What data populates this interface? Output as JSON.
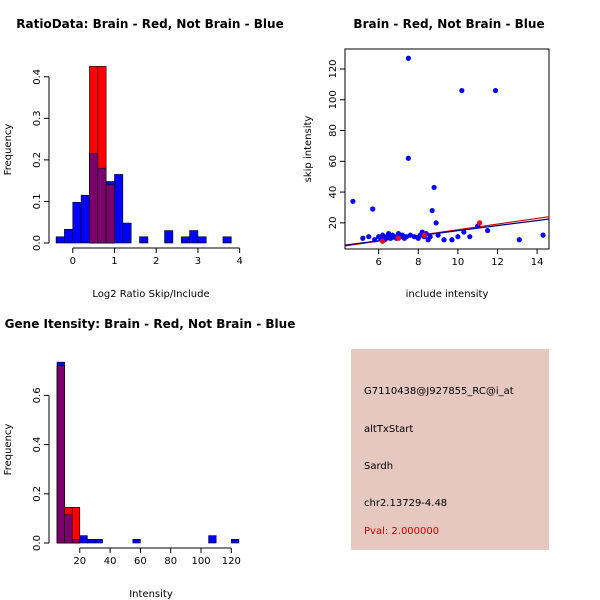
{
  "colors": {
    "red": "#ff0000",
    "blue": "#0000ff",
    "overlap": "#7b006b",
    "fit_red": "#cc0000",
    "fit_blue": "#000080",
    "panel_bg": "#e6c8c0",
    "pval": "#cc0000"
  },
  "chart_data": [
    {
      "id": "ratio",
      "type": "bar",
      "title": "RatioData: Brain - Red, Not Brain - Blue",
      "xlabel": "Log2 Ratio Skip/Include",
      "ylabel": "Frequency",
      "xlim": [
        -0.45,
        4.2
      ],
      "ylim": [
        0,
        0.45
      ],
      "xticks": [
        0,
        1,
        2,
        3,
        4
      ],
      "yticks": [
        0.0,
        0.1,
        0.2,
        0.3,
        0.4
      ],
      "bin_width": 0.2,
      "series": [
        {
          "name": "Not Brain",
          "color": "blue",
          "bins": [
            [
              -0.4,
              0.015
            ],
            [
              -0.2,
              0.033
            ],
            [
              0.0,
              0.098
            ],
            [
              0.2,
              0.115
            ],
            [
              0.4,
              0.215
            ],
            [
              0.6,
              0.18
            ],
            [
              0.8,
              0.148
            ],
            [
              1.0,
              0.165
            ],
            [
              1.2,
              0.048
            ],
            [
              1.6,
              0.015
            ],
            [
              2.2,
              0.03
            ],
            [
              2.6,
              0.015
            ],
            [
              2.8,
              0.03
            ],
            [
              3.0,
              0.015
            ],
            [
              3.6,
              0.015
            ]
          ]
        },
        {
          "name": "Brain",
          "color": "red",
          "bins": [
            [
              0.4,
              0.425
            ],
            [
              0.6,
              0.425
            ],
            [
              0.8,
              0.14
            ]
          ]
        }
      ]
    },
    {
      "id": "scatter",
      "type": "scatter",
      "title": "Brain - Red, Not Brain - Blue",
      "xlabel": "include intensity",
      "ylabel": "skip intensity",
      "xlim": [
        4.3,
        14.6
      ],
      "ylim": [
        3,
        133
      ],
      "xticks": [
        6,
        8,
        10,
        12,
        14
      ],
      "yticks": [
        20,
        40,
        60,
        80,
        100,
        120
      ],
      "series": [
        {
          "name": "Not Brain",
          "color": "blue",
          "points": [
            [
              4.7,
              34
            ],
            [
              5.2,
              10
            ],
            [
              5.5,
              11
            ],
            [
              5.7,
              29
            ],
            [
              5.8,
              9
            ],
            [
              6.0,
              11
            ],
            [
              6.1,
              10
            ],
            [
              6.2,
              12
            ],
            [
              6.3,
              9
            ],
            [
              6.4,
              11
            ],
            [
              6.5,
              13
            ],
            [
              6.6,
              10
            ],
            [
              6.7,
              12
            ],
            [
              6.8,
              11
            ],
            [
              6.9,
              10
            ],
            [
              7.0,
              13
            ],
            [
              7.1,
              11
            ],
            [
              7.2,
              12
            ],
            [
              7.3,
              10
            ],
            [
              7.4,
              11
            ],
            [
              7.5,
              127
            ],
            [
              7.5,
              62
            ],
            [
              7.6,
              12
            ],
            [
              7.8,
              11
            ],
            [
              8.0,
              10
            ],
            [
              8.1,
              12
            ],
            [
              8.2,
              14
            ],
            [
              8.3,
              11
            ],
            [
              8.4,
              13
            ],
            [
              8.5,
              9
            ],
            [
              8.6,
              11
            ],
            [
              8.7,
              28
            ],
            [
              8.8,
              43
            ],
            [
              8.9,
              20
            ],
            [
              9.0,
              12
            ],
            [
              9.3,
              9
            ],
            [
              9.7,
              9
            ],
            [
              10.0,
              11
            ],
            [
              10.2,
              106
            ],
            [
              10.3,
              14
            ],
            [
              10.6,
              11
            ],
            [
              11.0,
              18
            ],
            [
              11.5,
              15
            ],
            [
              11.9,
              106
            ],
            [
              13.1,
              9
            ],
            [
              14.3,
              12
            ]
          ]
        },
        {
          "name": "Brain",
          "color": "red",
          "points": [
            [
              6.2,
              8
            ],
            [
              7.0,
              10
            ],
            [
              8.3,
              12
            ],
            [
              11.1,
              20
            ]
          ]
        }
      ],
      "fits": [
        {
          "name": "Brain fit",
          "color": "fit_red",
          "from": [
            4.3,
            5.0
          ],
          "to": [
            14.6,
            24.0
          ]
        },
        {
          "name": "Not Brain fit",
          "color": "fit_blue",
          "from": [
            4.3,
            5.5
          ],
          "to": [
            14.6,
            22.5
          ]
        }
      ]
    },
    {
      "id": "gene",
      "type": "bar",
      "title": "Gene Itensity: Brain - Red, Not Brain - Blue",
      "xlabel": "Intensity",
      "ylabel": "Frequency",
      "xlim": [
        3,
        131
      ],
      "ylim": [
        0,
        0.76
      ],
      "xticks": [
        20,
        40,
        60,
        80,
        100,
        120
      ],
      "yticks": [
        0.0,
        0.2,
        0.4,
        0.6
      ],
      "bin_width": 5,
      "series": [
        {
          "name": "Not Brain",
          "color": "blue",
          "bins": [
            [
              5,
              0.735
            ],
            [
              10,
              0.115
            ],
            [
              15,
              0.015
            ],
            [
              20,
              0.03
            ],
            [
              25,
              0.015
            ],
            [
              30,
              0.015
            ],
            [
              55,
              0.015
            ],
            [
              105,
              0.03
            ],
            [
              120,
              0.015
            ]
          ]
        },
        {
          "name": "Brain",
          "color": "red",
          "bins": [
            [
              5,
              0.72
            ],
            [
              10,
              0.145
            ],
            [
              15,
              0.145
            ]
          ]
        }
      ]
    }
  ],
  "info": {
    "probe_id": "G7110438@J927855_RC@i_at",
    "event_type": "altTxStart",
    "gene": "Sardh",
    "location": "chr2.13729-4.48",
    "pval": "Pval: 2.000000"
  }
}
